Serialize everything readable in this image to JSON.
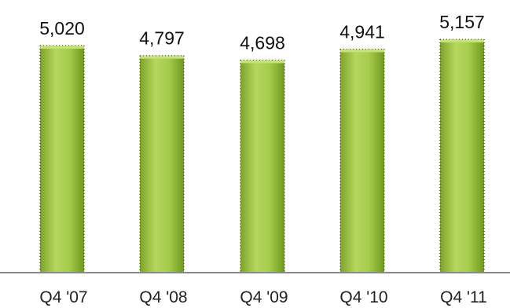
{
  "chart_data": {
    "type": "bar",
    "categories": [
      "Q4 '07",
      "Q4 '08",
      "Q4 '09",
      "Q4 '10",
      "Q4 '11"
    ],
    "values": [
      5020,
      4797,
      4698,
      4941,
      5157
    ],
    "value_labels": [
      "5,020",
      "4,797",
      "4,698",
      "4,941",
      "5,157"
    ],
    "ylim": [
      0,
      5157
    ],
    "grid": false,
    "legend": "none",
    "colors": {
      "bar_fill_light": "#c6e27a",
      "bar_fill_mid": "#98c23a",
      "bar_fill_dark": "#6f9a1e",
      "bar_edge": "#3d4a10",
      "axis": "#8a8a8a"
    }
  }
}
